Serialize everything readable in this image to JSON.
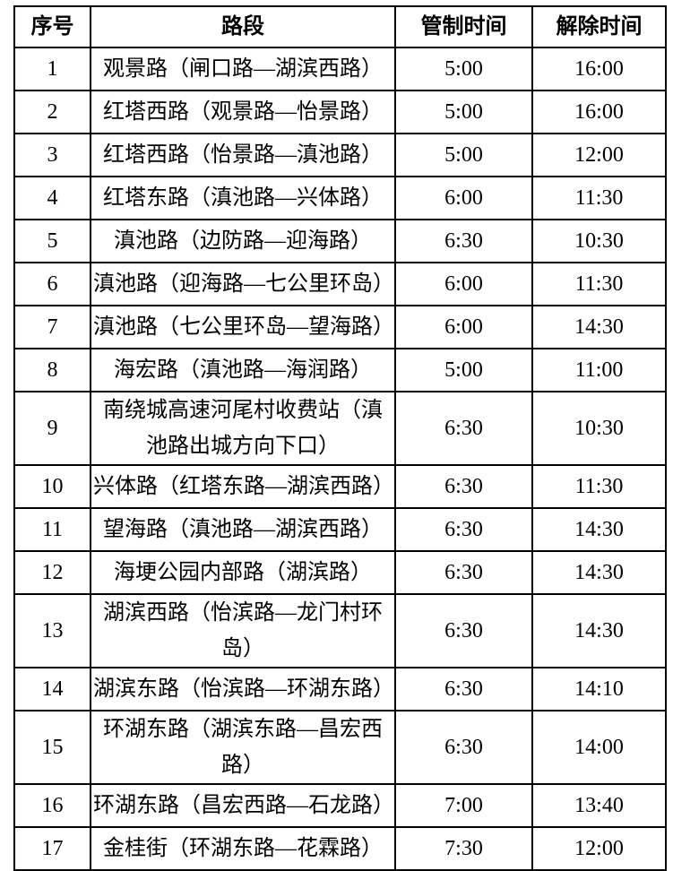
{
  "table": {
    "headers": [
      "序号",
      "路段",
      "管制时间",
      "解除时间"
    ],
    "rows": [
      {
        "no": "1",
        "road": "观景路（闸口路—湖滨西路）",
        "control_time": "5:00",
        "lift_time": "16:00"
      },
      {
        "no": "2",
        "road": "红塔西路（观景路—怡景路）",
        "control_time": "5:00",
        "lift_time": "16:00"
      },
      {
        "no": "3",
        "road": "红塔西路（怡景路—滇池路）",
        "control_time": "5:00",
        "lift_time": "12:00"
      },
      {
        "no": "4",
        "road": "红塔东路（滇池路—兴体路）",
        "control_time": "6:00",
        "lift_time": "11:30"
      },
      {
        "no": "5",
        "road": "滇池路（边防路—迎海路）",
        "control_time": "6:30",
        "lift_time": "10:30"
      },
      {
        "no": "6",
        "road": "滇池路（迎海路—七公里环岛）",
        "control_time": "6:00",
        "lift_time": "11:30"
      },
      {
        "no": "7",
        "road": "滇池路（七公里环岛—望海路）",
        "control_time": "6:00",
        "lift_time": "14:30"
      },
      {
        "no": "8",
        "road": "海宏路（滇池路—海润路）",
        "control_time": "5:00",
        "lift_time": "11:00"
      },
      {
        "no": "9",
        "road": "南绕城高速河尾村收费站（滇池路出城方向下口）",
        "control_time": "6:30",
        "lift_time": "10:30"
      },
      {
        "no": "10",
        "road": "兴体路（红塔东路—湖滨西路）",
        "control_time": "6:30",
        "lift_time": "11:30"
      },
      {
        "no": "11",
        "road": "望海路（滇池路—湖滨西路）",
        "control_time": "6:30",
        "lift_time": "14:30"
      },
      {
        "no": "12",
        "road": "海埂公园内部路（湖滨路）",
        "control_time": "6:30",
        "lift_time": "14:30"
      },
      {
        "no": "13",
        "road": "湖滨西路（怡滨路—龙门村环岛）",
        "control_time": "6:30",
        "lift_time": "14:30"
      },
      {
        "no": "14",
        "road": "湖滨东路（怡滨路—环湖东路）",
        "control_time": "6:30",
        "lift_time": "14:10"
      },
      {
        "no": "15",
        "road": "环湖东路（湖滨东路—昌宏西路）",
        "control_time": "6:30",
        "lift_time": "14:00"
      },
      {
        "no": "16",
        "road": "环湖东路（昌宏西路—石龙路）",
        "control_time": "7:00",
        "lift_time": "13:40"
      },
      {
        "no": "17",
        "road": "金桂街（环湖东路—花霖路）",
        "control_time": "7:30",
        "lift_time": "12:00"
      }
    ]
  }
}
